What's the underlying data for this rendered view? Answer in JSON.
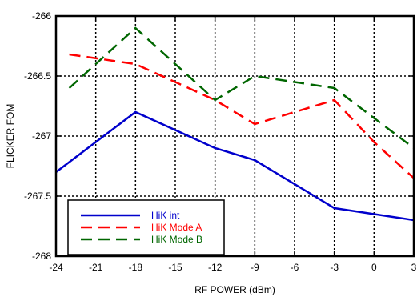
{
  "chart_data": {
    "type": "line",
    "xlabel": "RF POWER (dBm)",
    "ylabel": "FLICKER FOM",
    "xlim": [
      -24,
      3
    ],
    "ylim": [
      -268,
      -266
    ],
    "x_ticks": [
      -24,
      -21,
      -18,
      -15,
      -12,
      -9,
      -6,
      -3,
      0,
      3
    ],
    "y_ticks": [
      -268,
      -267.5,
      -267,
      -266.5,
      -266
    ],
    "x_tick_labels": [
      "-24",
      "-21",
      "-18",
      "-15",
      "-12",
      "-9",
      "-6",
      "-3",
      "0",
      "3"
    ],
    "y_tick_labels": [
      "-268",
      "-267.5",
      "-267",
      "-266.5",
      "-266"
    ],
    "grid": true,
    "legend_position": "bottom-left",
    "series": [
      {
        "name": "HiK int",
        "color": "#0000cc",
        "dash": "solid",
        "x": [
          -24,
          -18,
          -12,
          -9,
          -3,
          3
        ],
        "y": [
          -267.3,
          -266.8,
          -267.1,
          -267.2,
          -267.6,
          -267.7
        ]
      },
      {
        "name": "HiK Mode A",
        "color": "#ff0000",
        "dash": "dash",
        "x": [
          -23,
          -18,
          -12,
          -9,
          -6,
          -3,
          0,
          3
        ],
        "y": [
          -266.32,
          -266.4,
          -266.7,
          -266.9,
          -266.8,
          -266.7,
          -267.05,
          -267.35
        ]
      },
      {
        "name": "HiK Mode B",
        "color": "#006600",
        "dash": "dash",
        "x": [
          -23,
          -18,
          -15,
          -12,
          -9,
          -6,
          -3,
          0,
          3
        ],
        "y": [
          -266.6,
          -266.1,
          -266.4,
          -266.7,
          -266.5,
          -266.55,
          -266.6,
          -266.85,
          -267.1
        ]
      }
    ]
  }
}
